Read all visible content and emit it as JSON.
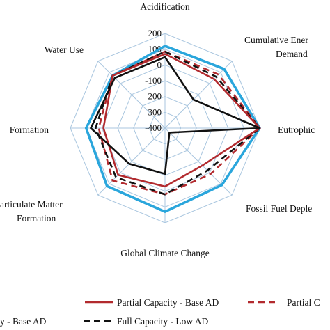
{
  "chart_data": {
    "type": "radar",
    "title": "",
    "axes": [
      "Acidification",
      "Cumulative Energy\nDemand",
      "Eutrophication",
      "Fossil Fuel Depletion",
      "Global Climate Change",
      "Particulate Matter\nFormation",
      "Smog Formation",
      "Water Use"
    ],
    "range": [
      -400,
      200
    ],
    "ticks": [
      200,
      100,
      0,
      -100,
      -200,
      -300,
      -400
    ],
    "grid": true,
    "legend_position": "bottom",
    "series": [
      {
        "name": "Partial Capacity - Base AD",
        "color": "#b22a2e",
        "dash": "solid",
        "values": [
          70,
          40,
          200,
          -65,
          -30,
          20,
          -10,
          70
        ]
      },
      {
        "name": "Partial Capacity - Low AD",
        "color": "#b22a2e",
        "dash": "dashed",
        "values": [
          85,
          80,
          200,
          10,
          20,
          70,
          20,
          70
        ]
      },
      {
        "name": "Full Capacity - Base AD",
        "color": "#111111",
        "dash": "solid",
        "values": [
          50,
          -145,
          200,
          -360,
          -110,
          -80,
          70,
          50
        ]
      },
      {
        "name": "Full Capacity - Low AD",
        "color": "#111111",
        "dash": "dashed",
        "values": [
          85,
          60,
          200,
          -20,
          20,
          40,
          40,
          70
        ]
      },
      {
        "name": "",
        "color": "#2aa6dc",
        "dash": "solid",
        "values": [
          120,
          130,
          200,
          110,
          130,
          120,
          100,
          70
        ]
      }
    ]
  },
  "legend": {
    "row1_left": "Partial Capacity - Base AD",
    "row1_right": "Partial C",
    "row2_left": "y - Base AD",
    "row2_right": "Full Capacity - Low AD"
  },
  "labels": {
    "acidification": "Acidification",
    "ced_line1": "Cumulative Ener",
    "ced_line2": "Demand",
    "eutrophication": "Eutrophic",
    "fossil": "Fossil Fuel Deple",
    "climate": "Global Climate Change",
    "pm_line1": "articulate Matter",
    "pm_line2": "Formation",
    "smog": "Formation",
    "water": "Water Use"
  }
}
